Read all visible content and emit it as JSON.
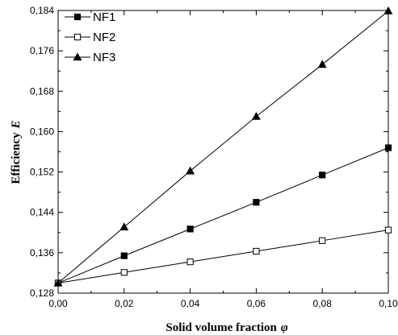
{
  "chart_data": {
    "type": "line",
    "xlabel": "Solid volume fraction",
    "xlabel_symbol": "φ",
    "ylabel": "Efficiency",
    "ylabel_symbol": "E",
    "xlim": [
      0.0,
      0.1
    ],
    "ylim": [
      0.128,
      0.184
    ],
    "x_ticks": [
      0.0,
      0.02,
      0.04,
      0.06,
      0.08,
      0.1
    ],
    "x_tick_labels": [
      "0,00",
      "0,02",
      "0,04",
      "0,06",
      "0,08",
      "0,10"
    ],
    "y_ticks": [
      0.128,
      0.136,
      0.144,
      0.152,
      0.16,
      0.168,
      0.176,
      0.184
    ],
    "y_tick_labels": [
      "0,128",
      "0,136",
      "0,144",
      "0,152",
      "0,160",
      "0,168",
      "0,176",
      "0,184"
    ],
    "grid": false,
    "legend_position": "top-left",
    "x": [
      0.0,
      0.02,
      0.04,
      0.06,
      0.08,
      0.1
    ],
    "series": [
      {
        "name": "NF1",
        "marker": "filled-square",
        "values": [
          0.13,
          0.1354,
          0.1407,
          0.146,
          0.1514,
          0.1568
        ]
      },
      {
        "name": "NF2",
        "marker": "open-square",
        "values": [
          0.13,
          0.1321,
          0.1342,
          0.1363,
          0.1384,
          0.1405
        ]
      },
      {
        "name": "NF3",
        "marker": "filled-triangle",
        "values": [
          0.13,
          0.1411,
          0.1522,
          0.163,
          0.1733,
          0.1839
        ]
      }
    ]
  }
}
